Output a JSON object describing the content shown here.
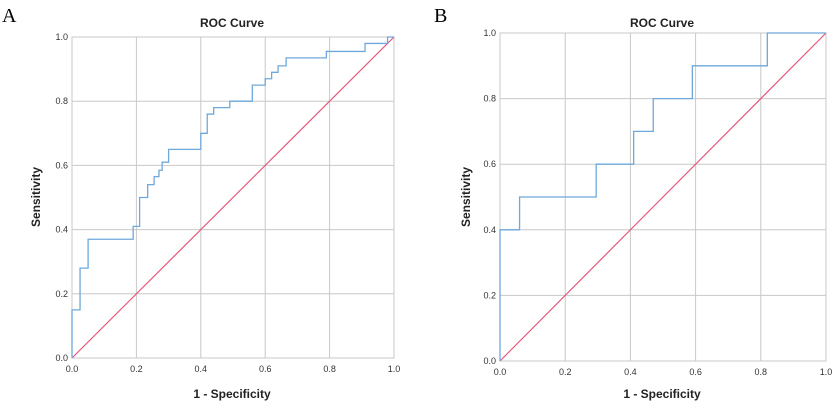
{
  "chart_data": [
    {
      "panel": "A",
      "type": "line",
      "title": "ROC Curve",
      "xlabel": "1 - Specificity",
      "ylabel": "Sensitivity",
      "xlim": [
        0,
        1
      ],
      "ylim": [
        0,
        1
      ],
      "grid": true,
      "xticks": [
        "0.0",
        "0.2",
        "0.4",
        "0.6",
        "0.8",
        "1.0"
      ],
      "yticks": [
        "0.0",
        "0.2",
        "0.4",
        "0.6",
        "0.8",
        "1.0"
      ],
      "colors": {
        "roc": "#6fa8dc",
        "reference": "#e8557a"
      },
      "series": [
        {
          "points": [
            [
              0.0,
              0.0
            ],
            [
              0.0,
              0.15
            ],
            [
              0.025,
              0.15
            ],
            [
              0.025,
              0.28
            ],
            [
              0.05,
              0.28
            ],
            [
              0.05,
              0.37
            ],
            [
              0.19,
              0.37
            ],
            [
              0.19,
              0.41
            ],
            [
              0.21,
              0.41
            ],
            [
              0.21,
              0.5
            ],
            [
              0.235,
              0.5
            ],
            [
              0.235,
              0.54
            ],
            [
              0.255,
              0.54
            ],
            [
              0.255,
              0.565
            ],
            [
              0.27,
              0.565
            ],
            [
              0.27,
              0.585
            ],
            [
              0.28,
              0.585
            ],
            [
              0.28,
              0.61
            ],
            [
              0.3,
              0.61
            ],
            [
              0.3,
              0.65
            ],
            [
              0.4,
              0.65
            ],
            [
              0.4,
              0.7
            ],
            [
              0.42,
              0.7
            ],
            [
              0.42,
              0.76
            ],
            [
              0.44,
              0.76
            ],
            [
              0.44,
              0.78
            ],
            [
              0.49,
              0.78
            ],
            [
              0.49,
              0.8
            ],
            [
              0.56,
              0.8
            ],
            [
              0.56,
              0.85
            ],
            [
              0.6,
              0.85
            ],
            [
              0.6,
              0.87
            ],
            [
              0.62,
              0.87
            ],
            [
              0.62,
              0.89
            ],
            [
              0.64,
              0.89
            ],
            [
              0.64,
              0.91
            ],
            [
              0.665,
              0.91
            ],
            [
              0.665,
              0.935
            ],
            [
              0.79,
              0.935
            ],
            [
              0.79,
              0.955
            ],
            [
              0.91,
              0.955
            ],
            [
              0.91,
              0.98
            ],
            [
              0.98,
              0.98
            ],
            [
              0.98,
              1.0
            ],
            [
              1.0,
              1.0
            ]
          ]
        },
        {
          "points": [
            [
              0,
              0
            ],
            [
              1,
              1
            ]
          ]
        }
      ]
    },
    {
      "panel": "B",
      "type": "line",
      "title": "ROC Curve",
      "xlabel": "1 - Specificity",
      "ylabel": "Sensitivity",
      "xlim": [
        0,
        1
      ],
      "ylim": [
        0,
        1
      ],
      "grid": true,
      "xticks": [
        "0.0",
        "0.2",
        "0.4",
        "0.6",
        "0.8",
        "1.0"
      ],
      "yticks": [
        "0.0",
        "0.2",
        "0.4",
        "0.6",
        "0.8",
        "1.0"
      ],
      "colors": {
        "roc": "#6fa8dc",
        "reference": "#e8557a"
      },
      "series": [
        {
          "points": [
            [
              0.0,
              0.0
            ],
            [
              0.0,
              0.4
            ],
            [
              0.06,
              0.4
            ],
            [
              0.06,
              0.5
            ],
            [
              0.295,
              0.5
            ],
            [
              0.295,
              0.6
            ],
            [
              0.41,
              0.6
            ],
            [
              0.41,
              0.7
            ],
            [
              0.47,
              0.7
            ],
            [
              0.47,
              0.8
            ],
            [
              0.59,
              0.8
            ],
            [
              0.59,
              0.9
            ],
            [
              0.82,
              0.9
            ],
            [
              0.82,
              1.0
            ],
            [
              1.0,
              1.0
            ]
          ]
        },
        {
          "points": [
            [
              0,
              0
            ],
            [
              1,
              1
            ]
          ]
        }
      ]
    }
  ]
}
